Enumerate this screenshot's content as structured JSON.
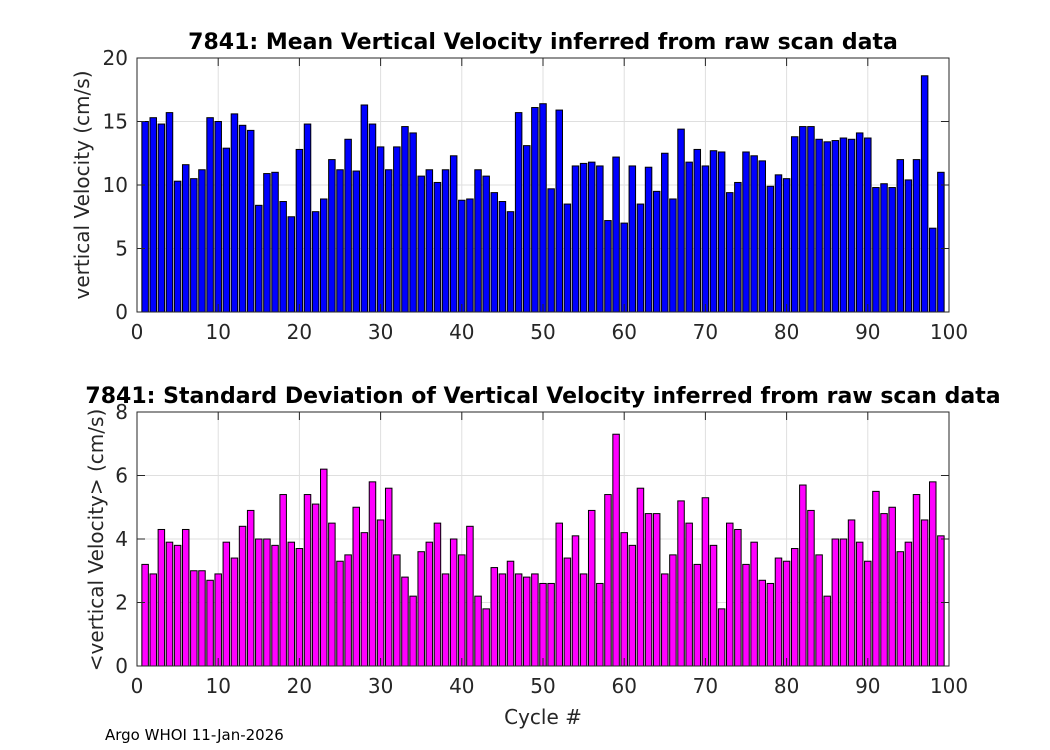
{
  "footer": "Argo WHOI 11-Jan-2026",
  "chart_data": [
    {
      "type": "bar",
      "title": "7841: Mean Vertical Velocity inferred from raw scan data",
      "xlabel": "",
      "ylabel": "vertical Velocity (cm/s)",
      "xlim": [
        0,
        100
      ],
      "ylim": [
        0,
        20
      ],
      "xticks": [
        0,
        10,
        20,
        30,
        40,
        50,
        60,
        70,
        80,
        90,
        100
      ],
      "yticks": [
        0,
        5,
        10,
        15,
        20
      ],
      "grid": true,
      "color": "#0000ff",
      "x": [
        1,
        2,
        3,
        4,
        5,
        6,
        7,
        8,
        9,
        10,
        11,
        12,
        13,
        14,
        15,
        16,
        17,
        18,
        19,
        20,
        21,
        22,
        23,
        24,
        25,
        26,
        27,
        28,
        29,
        30,
        31,
        32,
        33,
        34,
        35,
        36,
        37,
        38,
        39,
        40,
        41,
        42,
        43,
        44,
        45,
        46,
        47,
        48,
        49,
        50,
        51,
        52,
        53,
        54,
        55,
        56,
        57,
        58,
        59,
        60,
        61,
        62,
        63,
        64,
        65,
        66,
        67,
        68,
        69,
        70,
        71,
        72,
        73,
        74,
        75,
        76,
        77,
        78,
        79,
        80,
        81,
        82,
        83,
        84,
        85,
        86,
        87,
        88,
        89,
        90,
        91,
        92,
        93,
        94,
        95,
        96,
        97,
        98,
        99
      ],
      "values": [
        15.0,
        15.3,
        14.8,
        15.7,
        10.3,
        11.6,
        10.5,
        11.2,
        15.3,
        15.0,
        12.9,
        15.6,
        14.7,
        14.3,
        8.4,
        10.9,
        11.0,
        8.7,
        7.5,
        12.8,
        14.8,
        7.9,
        8.9,
        12.0,
        11.2,
        13.6,
        11.1,
        16.3,
        14.8,
        13.0,
        11.2,
        13.0,
        14.6,
        14.1,
        10.7,
        11.2,
        10.2,
        11.2,
        12.3,
        8.8,
        8.9,
        11.2,
        10.7,
        9.4,
        8.7,
        7.9,
        15.7,
        13.1,
        16.1,
        16.4,
        9.7,
        15.9,
        8.5,
        11.5,
        11.7,
        11.8,
        11.5,
        7.2,
        12.2,
        7.0,
        11.5,
        8.5,
        11.4,
        9.5,
        12.5,
        8.9,
        14.4,
        11.8,
        12.8,
        11.5,
        12.7,
        12.6,
        9.4,
        10.2,
        12.6,
        12.3,
        11.9,
        9.9,
        10.8,
        10.5,
        13.8,
        14.6,
        14.6,
        13.6,
        13.4,
        13.5,
        13.7,
        13.6,
        14.1,
        13.7,
        9.8,
        10.1,
        9.8,
        12.0,
        10.4,
        12.0,
        18.6,
        6.6,
        11.0
      ]
    },
    {
      "type": "bar",
      "title": "7841: Standard Deviation of Vertical Velocity inferred from raw scan data",
      "xlabel": "Cycle #",
      "ylabel": "<vertical Velocity> (cm/s)",
      "xlim": [
        0,
        100
      ],
      "ylim": [
        0,
        8
      ],
      "xticks": [
        0,
        10,
        20,
        30,
        40,
        50,
        60,
        70,
        80,
        90,
        100
      ],
      "yticks": [
        0,
        2,
        4,
        6,
        8
      ],
      "grid": true,
      "color": "#ff00ff",
      "x": [
        1,
        2,
        3,
        4,
        5,
        6,
        7,
        8,
        9,
        10,
        11,
        12,
        13,
        14,
        15,
        16,
        17,
        18,
        19,
        20,
        21,
        22,
        23,
        24,
        25,
        26,
        27,
        28,
        29,
        30,
        31,
        32,
        33,
        34,
        35,
        36,
        37,
        38,
        39,
        40,
        41,
        42,
        43,
        44,
        45,
        46,
        47,
        48,
        49,
        50,
        51,
        52,
        53,
        54,
        55,
        56,
        57,
        58,
        59,
        60,
        61,
        62,
        63,
        64,
        65,
        66,
        67,
        68,
        69,
        70,
        71,
        72,
        73,
        74,
        75,
        76,
        77,
        78,
        79,
        80,
        81,
        82,
        83,
        84,
        85,
        86,
        87,
        88,
        89,
        90,
        91,
        92,
        93,
        94,
        95,
        96,
        97,
        98,
        99
      ],
      "values": [
        3.2,
        2.9,
        4.3,
        3.9,
        3.8,
        4.3,
        3.0,
        3.0,
        2.7,
        2.9,
        3.9,
        3.4,
        4.4,
        4.9,
        4.0,
        4.0,
        3.8,
        5.4,
        3.9,
        3.7,
        5.4,
        5.1,
        6.2,
        4.5,
        3.3,
        3.5,
        5.0,
        4.2,
        5.8,
        4.6,
        5.6,
        3.5,
        2.8,
        2.2,
        3.6,
        3.9,
        4.5,
        2.9,
        4.0,
        3.5,
        4.4,
        2.2,
        1.8,
        3.1,
        2.9,
        3.3,
        2.9,
        2.8,
        2.9,
        2.6,
        2.6,
        4.5,
        3.4,
        4.1,
        2.9,
        4.9,
        2.6,
        5.4,
        7.3,
        4.2,
        3.8,
        5.6,
        4.8,
        4.8,
        2.9,
        3.5,
        5.2,
        4.5,
        3.2,
        5.3,
        3.8,
        1.8,
        4.5,
        4.3,
        3.2,
        3.9,
        2.7,
        2.6,
        3.4,
        3.3,
        3.7,
        5.7,
        4.9,
        3.5,
        2.2,
        4.0,
        4.0,
        4.6,
        3.9,
        3.3,
        5.5,
        4.8,
        5.0,
        3.6,
        3.9,
        5.4,
        4.6,
        5.8,
        4.1
      ]
    }
  ]
}
